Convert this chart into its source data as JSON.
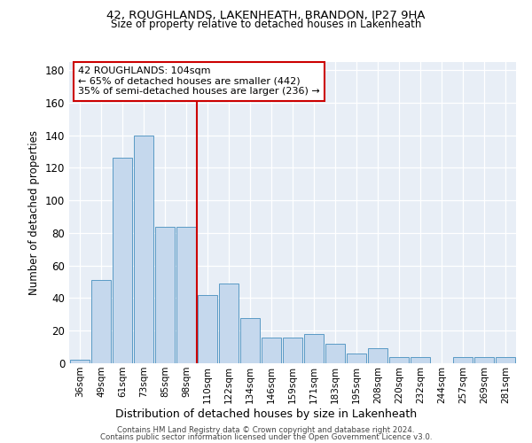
{
  "title": "42, ROUGHLANDS, LAKENHEATH, BRANDON, IP27 9HA",
  "subtitle": "Size of property relative to detached houses in Lakenheath",
  "xlabel": "Distribution of detached houses by size in Lakenheath",
  "ylabel": "Number of detached properties",
  "categories": [
    "36sqm",
    "49sqm",
    "61sqm",
    "73sqm",
    "85sqm",
    "98sqm",
    "110sqm",
    "122sqm",
    "134sqm",
    "146sqm",
    "159sqm",
    "171sqm",
    "183sqm",
    "195sqm",
    "208sqm",
    "220sqm",
    "232sqm",
    "244sqm",
    "257sqm",
    "269sqm",
    "281sqm"
  ],
  "values": [
    2,
    51,
    126,
    140,
    84,
    84,
    42,
    49,
    28,
    16,
    16,
    18,
    12,
    6,
    9,
    4,
    4,
    0,
    4,
    4,
    4
  ],
  "bar_color": "#c5d8ed",
  "bar_edge_color": "#5a9ac5",
  "vline_color": "#cc0000",
  "box_color": "#cc0000",
  "ylim": [
    0,
    185
  ],
  "yticks": [
    0,
    20,
    40,
    60,
    80,
    100,
    120,
    140,
    160,
    180
  ],
  "background_color": "#e8eef6",
  "marker_label": "42 ROUGHLANDS: 104sqm",
  "annotation_line1": "← 65% of detached houses are smaller (442)",
  "annotation_line2": "35% of semi-detached houses are larger (236) →",
  "footer_line1": "Contains HM Land Registry data © Crown copyright and database right 2024.",
  "footer_line2": "Contains public sector information licensed under the Open Government Licence v3.0."
}
